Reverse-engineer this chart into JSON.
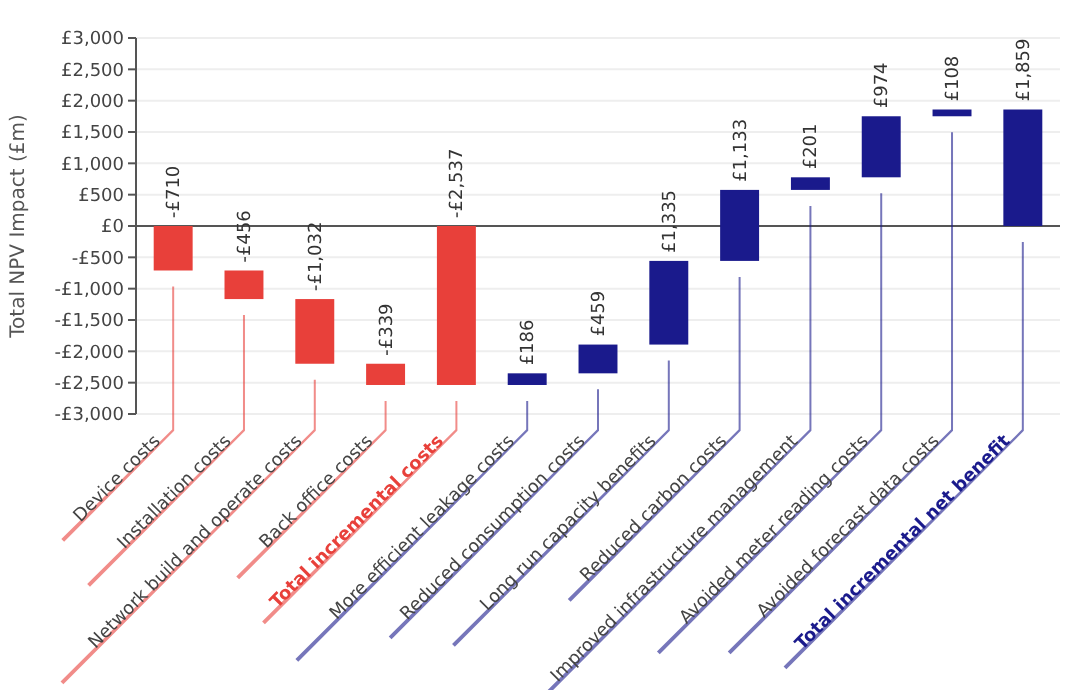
{
  "chart_data": {
    "type": "bar",
    "ylabel": "Total NPV Impact (£m)",
    "categories": [
      "Device costs",
      "Installation costs",
      "Network build and operate costs",
      "Back office costs",
      "Total incremental costs",
      "More efficient leakage costs",
      "Reduced consumption costs",
      "Long run capacity benefits",
      "Reduced carbon costs",
      "Improved infrastructure management",
      "Avoided meter reading costs",
      "Avoided forecast data costs",
      "Total incremental net benefit"
    ],
    "values": [
      -710,
      -456,
      -1032,
      -339,
      -2537,
      186,
      459,
      1335,
      1133,
      201,
      974,
      108,
      1859
    ],
    "base": [
      0,
      -710,
      -1166,
      -2198,
      null,
      -2537,
      -2351,
      -1892,
      -557,
      576,
      777,
      1751,
      null
    ],
    "colors": [
      "#e8403a",
      "#e8403a",
      "#e8403a",
      "#e8403a",
      "#e8403a",
      "#1a1a8c",
      "#1a1a8c",
      "#1a1a8c",
      "#1a1a8c",
      "#1a1a8c",
      "#1a1a8c",
      "#1a1a8c",
      "#1a1a8c"
    ],
    "value_labels": [
      "-£710",
      "-£456",
      "-£1,032",
      "-£339",
      "-£2,537",
      "£186",
      "£459",
      "£1,335",
      "£1,133",
      "£201",
      "£974",
      "£108",
      "£1,859"
    ],
    "ylim": [
      -3000,
      3000
    ],
    "yticks": [
      {
        "value": 3000,
        "label": "£3,000"
      },
      {
        "value": 2500,
        "label": "£2,500"
      },
      {
        "value": 2000,
        "label": "£2,000"
      },
      {
        "value": 1500,
        "label": "£1,500"
      },
      {
        "value": 1000,
        "label": "£1,000"
      },
      {
        "value": 500,
        "label": "£500"
      },
      {
        "value": 0,
        "label": "£0"
      },
      {
        "value": -500,
        "label": "-£500"
      },
      {
        "value": -1000,
        "label": "-£1,000"
      },
      {
        "value": -1500,
        "label": "-£1,500"
      },
      {
        "value": -2000,
        "label": "-£2,000"
      },
      {
        "value": -2500,
        "label": "-£2,500"
      },
      {
        "value": -3000,
        "label": "-£3,000"
      }
    ],
    "grid": "y"
  }
}
